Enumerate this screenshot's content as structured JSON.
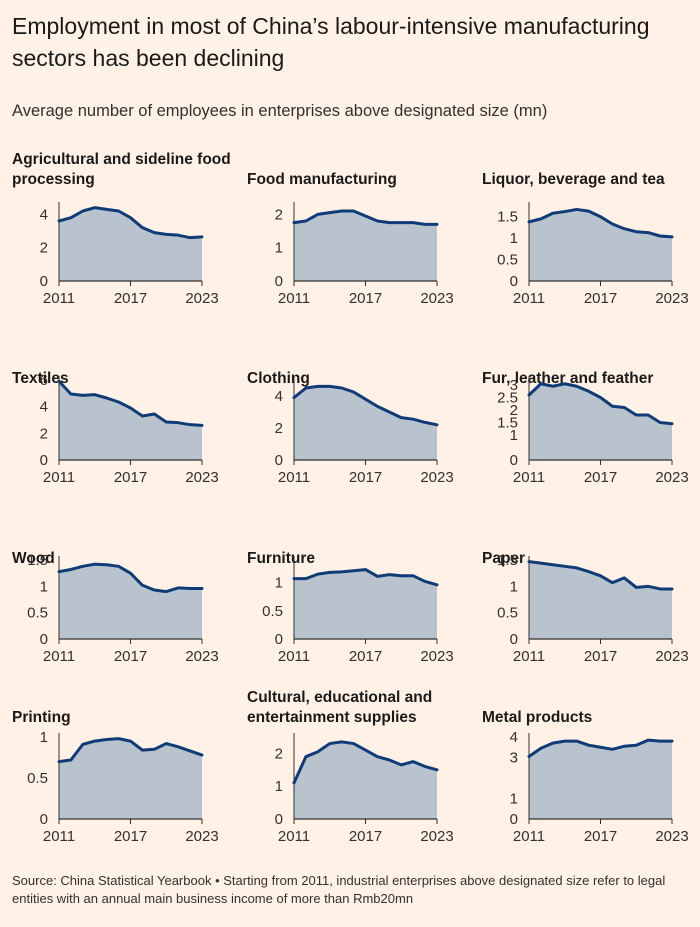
{
  "header": {
    "title": "Employment in most of China’s labour-intensive manufacturing sectors has been declining",
    "subtitle": "Average number of employees in enterprises above designated size (mn)"
  },
  "footer": {
    "note": "Source: China Statistical Yearbook • Starting from 2011, industrial enterprises above designated size refer to legal entities with an annual main business income of more than Rmb20mn"
  },
  "colors": {
    "area": "#b9c3cd",
    "line": "#0f3c78",
    "axis": "#33302e",
    "background": "#fff1e5"
  },
  "chart_data": [
    {
      "type": "area",
      "title": "Agricultural and sideline food processing",
      "x": [
        2011,
        2012,
        2013,
        2014,
        2015,
        2016,
        2017,
        2018,
        2019,
        2020,
        2021,
        2022,
        2023
      ],
      "values": [
        3.6,
        3.8,
        4.2,
        4.4,
        4.3,
        4.2,
        3.8,
        3.2,
        2.9,
        2.8,
        2.75,
        2.6,
        2.65
      ],
      "ylim": [
        0,
        4.5
      ],
      "yticks": [
        0,
        2,
        4
      ],
      "xticks": [
        2011,
        2017,
        2023
      ]
    },
    {
      "type": "area",
      "title": "Food manufacturing",
      "x": [
        2011,
        2012,
        2013,
        2014,
        2015,
        2016,
        2017,
        2018,
        2019,
        2020,
        2021,
        2022,
        2023
      ],
      "values": [
        1.75,
        1.8,
        2.0,
        2.05,
        2.1,
        2.1,
        1.95,
        1.8,
        1.75,
        1.75,
        1.75,
        1.7,
        1.7
      ],
      "ylim": [
        0,
        2.25
      ],
      "yticks": [
        0,
        1,
        2
      ],
      "xticks": [
        2011,
        2017,
        2023
      ]
    },
    {
      "type": "area",
      "title": "Liquor, beverage and tea",
      "x": [
        2011,
        2012,
        2013,
        2014,
        2015,
        2016,
        2017,
        2018,
        2019,
        2020,
        2021,
        2022,
        2023
      ],
      "values": [
        1.38,
        1.45,
        1.58,
        1.62,
        1.67,
        1.63,
        1.5,
        1.33,
        1.22,
        1.15,
        1.13,
        1.05,
        1.03
      ],
      "ylim": [
        0,
        1.75
      ],
      "yticks": [
        0,
        0.5,
        1,
        1.5
      ],
      "xticks": [
        2011,
        2017,
        2023
      ]
    },
    {
      "type": "area",
      "title": "Textiles",
      "x": [
        2011,
        2012,
        2013,
        2014,
        2015,
        2016,
        2017,
        2018,
        2019,
        2020,
        2021,
        2022,
        2023
      ],
      "values": [
        5.9,
        4.95,
        4.85,
        4.9,
        4.65,
        4.35,
        3.9,
        3.3,
        3.45,
        2.85,
        2.8,
        2.65,
        2.6
      ],
      "ylim": [
        0,
        6
      ],
      "yticks": [
        0,
        2,
        4,
        6
      ],
      "xticks": [
        2011,
        2017,
        2023
      ]
    },
    {
      "type": "area",
      "title": "Clothing",
      "x": [
        2011,
        2012,
        2013,
        2014,
        2015,
        2016,
        2017,
        2018,
        2019,
        2020,
        2021,
        2022,
        2023
      ],
      "values": [
        3.9,
        4.5,
        4.6,
        4.6,
        4.5,
        4.25,
        3.8,
        3.35,
        3.0,
        2.65,
        2.55,
        2.35,
        2.2
      ],
      "ylim": [
        0,
        5
      ],
      "yticks": [
        0,
        2,
        4
      ],
      "xticks": [
        2011,
        2017,
        2023
      ]
    },
    {
      "type": "area",
      "title": "Fur, leather and feather",
      "x": [
        2011,
        2012,
        2013,
        2014,
        2015,
        2016,
        2017,
        2018,
        2019,
        2020,
        2021,
        2022,
        2023
      ],
      "values": [
        2.6,
        3.05,
        2.95,
        3.05,
        2.95,
        2.75,
        2.5,
        2.15,
        2.1,
        1.8,
        1.8,
        1.5,
        1.45
      ],
      "ylim": [
        0,
        3.2
      ],
      "yticks": [
        0,
        1,
        1.5,
        2,
        2.5,
        3
      ],
      "xticks": [
        2011,
        2017,
        2023
      ]
    },
    {
      "type": "area",
      "title": "Wood",
      "x": [
        2011,
        2012,
        2013,
        2014,
        2015,
        2016,
        2017,
        2018,
        2019,
        2020,
        2021,
        2022,
        2023
      ],
      "values": [
        1.28,
        1.32,
        1.38,
        1.42,
        1.41,
        1.38,
        1.25,
        1.02,
        0.93,
        0.9,
        0.97,
        0.96,
        0.96
      ],
      "ylim": [
        0,
        1.5
      ],
      "yticks": [
        0,
        0.5,
        1,
        1.5
      ],
      "xticks": [
        2011,
        2017,
        2023
      ]
    },
    {
      "type": "area",
      "title": "Furniture",
      "x": [
        2011,
        2012,
        2013,
        2014,
        2015,
        2016,
        2017,
        2018,
        2019,
        2020,
        2021,
        2022,
        2023
      ],
      "values": [
        1.07,
        1.07,
        1.15,
        1.18,
        1.19,
        1.21,
        1.23,
        1.11,
        1.14,
        1.12,
        1.12,
        1.02,
        0.96
      ],
      "ylim": [
        0,
        1.4
      ],
      "yticks": [
        0,
        0.5,
        1
      ],
      "xticks": [
        2011,
        2017,
        2023
      ]
    },
    {
      "type": "area",
      "title": "Paper",
      "x": [
        2011,
        2012,
        2013,
        2014,
        2015,
        2016,
        2017,
        2018,
        2019,
        2020,
        2021,
        2022,
        2023
      ],
      "values": [
        1.47,
        1.44,
        1.41,
        1.38,
        1.35,
        1.28,
        1.2,
        1.07,
        1.16,
        0.98,
        1.0,
        0.95,
        0.95
      ],
      "ylim": [
        0,
        1.5
      ],
      "yticks": [
        0,
        0.5,
        1,
        1.5
      ],
      "xticks": [
        2011,
        2017,
        2023
      ]
    },
    {
      "type": "area",
      "title": "Printing",
      "x": [
        2011,
        2012,
        2013,
        2014,
        2015,
        2016,
        2017,
        2018,
        2019,
        2020,
        2021,
        2022,
        2023
      ],
      "values": [
        0.7,
        0.72,
        0.91,
        0.95,
        0.97,
        0.98,
        0.95,
        0.84,
        0.85,
        0.92,
        0.88,
        0.83,
        0.78
      ],
      "ylim": [
        0,
        1
      ],
      "yticks": [
        0,
        0.5,
        1
      ],
      "xticks": [
        2011,
        2017,
        2023
      ]
    },
    {
      "type": "area",
      "title": "Cultural, educational and entertainment supplies",
      "x": [
        2011,
        2012,
        2013,
        2014,
        2015,
        2016,
        2017,
        2018,
        2019,
        2020,
        2021,
        2022,
        2023
      ],
      "values": [
        1.1,
        1.9,
        2.05,
        2.3,
        2.35,
        2.3,
        2.1,
        1.9,
        1.8,
        1.65,
        1.75,
        1.6,
        1.5
      ],
      "ylim": [
        0,
        2.5
      ],
      "yticks": [
        0,
        1,
        2
      ],
      "xticks": [
        2011,
        2017,
        2023
      ]
    },
    {
      "type": "area",
      "title": "Metal products",
      "x": [
        2011,
        2012,
        2013,
        2014,
        2015,
        2016,
        2017,
        2018,
        2019,
        2020,
        2021,
        2022,
        2023
      ],
      "values": [
        3.05,
        3.45,
        3.7,
        3.8,
        3.8,
        3.6,
        3.5,
        3.4,
        3.55,
        3.6,
        3.85,
        3.8,
        3.8
      ],
      "ylim": [
        0,
        4
      ],
      "yticks": [
        0,
        1,
        3,
        4
      ],
      "xticks": [
        2011,
        2017,
        2023
      ]
    }
  ]
}
